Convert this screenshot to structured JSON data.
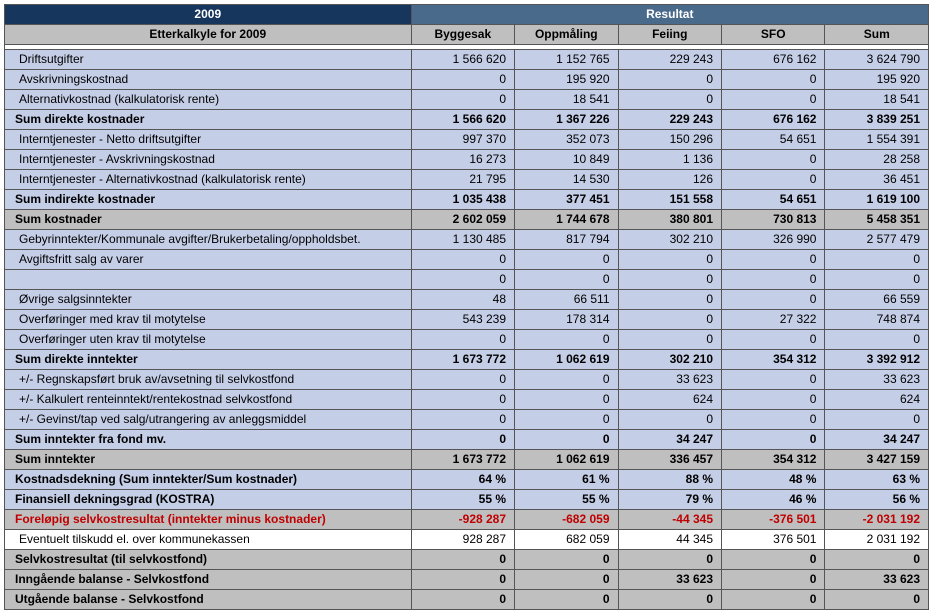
{
  "header": {
    "year": "2009",
    "resultat": "Resultat",
    "subtitle": "Etterkalkyle for 2009",
    "cols": [
      "Byggesak",
      "Oppmåling",
      "Feiing",
      "SFO",
      "Sum"
    ]
  },
  "rows": [
    {
      "label": "Driftsutgifter",
      "v": [
        "1 566 620",
        "1 152 765",
        "229 243",
        "676 162",
        "3 624 790"
      ],
      "bg": "blue",
      "bold": false,
      "neg": false
    },
    {
      "label": "Avskrivningskostnad",
      "v": [
        "0",
        "195 920",
        "0",
        "0",
        "195 920"
      ],
      "bg": "blue",
      "bold": false,
      "neg": false
    },
    {
      "label": "Alternativkostnad (kalkulatorisk rente)",
      "v": [
        "0",
        "18 541",
        "0",
        "0",
        "18 541"
      ],
      "bg": "blue",
      "bold": false,
      "neg": false
    },
    {
      "label": "Sum direkte kostnader",
      "v": [
        "1 566 620",
        "1 367 226",
        "229 243",
        "676 162",
        "3 839 251"
      ],
      "bg": "blue",
      "bold": true,
      "neg": false
    },
    {
      "label": "Interntjenester - Netto driftsutgifter",
      "v": [
        "997 370",
        "352 073",
        "150 296",
        "54 651",
        "1 554 391"
      ],
      "bg": "blue",
      "bold": false,
      "neg": false
    },
    {
      "label": "Interntjenester - Avskrivningskostnad",
      "v": [
        "16 273",
        "10 849",
        "1 136",
        "0",
        "28 258"
      ],
      "bg": "blue",
      "bold": false,
      "neg": false
    },
    {
      "label": "Interntjenester - Alternativkostnad (kalkulatorisk rente)",
      "v": [
        "21 795",
        "14 530",
        "126",
        "0",
        "36 451"
      ],
      "bg": "blue",
      "bold": false,
      "neg": false
    },
    {
      "label": "Sum indirekte kostnader",
      "v": [
        "1 035 438",
        "377 451",
        "151 558",
        "54 651",
        "1 619 100"
      ],
      "bg": "blue",
      "bold": true,
      "neg": false
    },
    {
      "label": "Sum kostnader",
      "v": [
        "2 602 059",
        "1 744 678",
        "380 801",
        "730 813",
        "5 458 351"
      ],
      "bg": "gray",
      "bold": true,
      "neg": false
    },
    {
      "label": "Gebyrinntekter/Kommunale avgifter/Brukerbetaling/oppholdsbet.",
      "v": [
        "1 130 485",
        "817 794",
        "302 210",
        "326 990",
        "2 577 479"
      ],
      "bg": "blue",
      "bold": false,
      "neg": false
    },
    {
      "label": "Avgiftsfritt salg av varer",
      "v": [
        "0",
        "0",
        "0",
        "0",
        "0"
      ],
      "bg": "blue",
      "bold": false,
      "neg": false
    },
    {
      "label": "",
      "v": [
        "0",
        "0",
        "0",
        "0",
        "0"
      ],
      "bg": "blue",
      "bold": false,
      "neg": false
    },
    {
      "label": "Øvrige salgsinntekter",
      "v": [
        "48",
        "66 511",
        "0",
        "0",
        "66 559"
      ],
      "bg": "blue",
      "bold": false,
      "neg": false
    },
    {
      "label": "Overføringer med krav til motytelse",
      "v": [
        "543 239",
        "178 314",
        "0",
        "27 322",
        "748 874"
      ],
      "bg": "blue",
      "bold": false,
      "neg": false
    },
    {
      "label": "Overføringer uten krav til motytelse",
      "v": [
        "0",
        "0",
        "0",
        "0",
        "0"
      ],
      "bg": "blue",
      "bold": false,
      "neg": false
    },
    {
      "label": "Sum direkte inntekter",
      "v": [
        "1 673 772",
        "1 062 619",
        "302 210",
        "354 312",
        "3 392 912"
      ],
      "bg": "blue",
      "bold": true,
      "neg": false
    },
    {
      "label": "+/- Regnskapsført bruk av/avsetning til selvkostfond",
      "v": [
        "0",
        "0",
        "33 623",
        "0",
        "33 623"
      ],
      "bg": "blue",
      "bold": false,
      "neg": false
    },
    {
      "label": "+/- Kalkulert renteinntekt/rentekostnad selvkostfond",
      "v": [
        "0",
        "0",
        "624",
        "0",
        "624"
      ],
      "bg": "blue",
      "bold": false,
      "neg": false
    },
    {
      "label": "+/- Gevinst/tap ved salg/utrangering av anleggsmiddel",
      "v": [
        "0",
        "0",
        "0",
        "0",
        "0"
      ],
      "bg": "blue",
      "bold": false,
      "neg": false
    },
    {
      "label": "Sum inntekter fra fond mv.",
      "v": [
        "0",
        "0",
        "34 247",
        "0",
        "34 247"
      ],
      "bg": "blue",
      "bold": true,
      "neg": false
    },
    {
      "label": "Sum inntekter",
      "v": [
        "1 673 772",
        "1 062 619",
        "336 457",
        "354 312",
        "3 427 159"
      ],
      "bg": "gray",
      "bold": true,
      "neg": false
    },
    {
      "label": "Kostnadsdekning (Sum inntekter/Sum kostnader)",
      "v": [
        "64 %",
        "61 %",
        "88 %",
        "48 %",
        "63 %"
      ],
      "bg": "blue",
      "bold": true,
      "neg": false
    },
    {
      "label": "Finansiell dekningsgrad (KOSTRA)",
      "v": [
        "55 %",
        "55 %",
        "79 %",
        "46 %",
        "56 %"
      ],
      "bg": "blue",
      "bold": true,
      "neg": false
    },
    {
      "label": "Foreløpig selvkostresultat (inntekter minus kostnader)",
      "v": [
        "-928 287",
        "-682 059",
        "-44 345",
        "-376 501",
        "-2 031 192"
      ],
      "bg": "gray",
      "bold": true,
      "neg": true
    },
    {
      "label": "Eventuelt tilskudd el. over kommunekassen",
      "v": [
        "928 287",
        "682 059",
        "44 345",
        "376 501",
        "2 031 192"
      ],
      "bg": "white",
      "bold": false,
      "neg": false
    },
    {
      "label": "Selvkostresultat (til selvkostfond)",
      "v": [
        "0",
        "0",
        "0",
        "0",
        "0"
      ],
      "bg": "gray",
      "bold": true,
      "neg": false
    },
    {
      "label": "Inngående balanse - Selvkostfond",
      "v": [
        "0",
        "0",
        "33 623",
        "0",
        "33 623"
      ],
      "bg": "gray",
      "bold": true,
      "neg": false
    },
    {
      "label": "Utgående balanse - Selvkostfond",
      "v": [
        "0",
        "0",
        "0",
        "0",
        "0"
      ],
      "bg": "gray",
      "bold": true,
      "neg": false
    }
  ],
  "colWidths": [
    "44%",
    "11.2%",
    "11.2%",
    "11.2%",
    "11.2%",
    "11.2%"
  ]
}
